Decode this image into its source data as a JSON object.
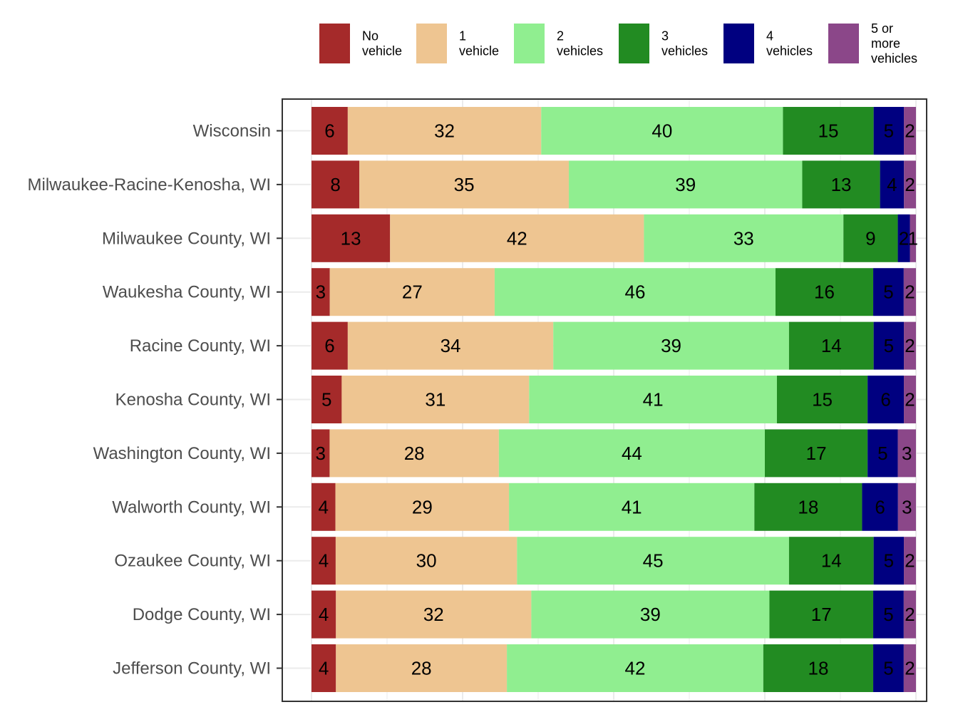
{
  "chart_data": {
    "type": "bar",
    "orientation": "horizontal",
    "stacked": true,
    "xlim": [
      0,
      100
    ],
    "grid": true,
    "legend_position": "top",
    "title": "",
    "xlabel": "",
    "ylabel": "",
    "categories": [
      "Wisconsin",
      "Milwaukee-Racine-Kenosha, WI",
      "Milwaukee County, WI",
      "Waukesha County, WI",
      "Racine County, WI",
      "Kenosha County, WI",
      "Washington County, WI",
      "Walworth County, WI",
      "Ozaukee County, WI",
      "Dodge County, WI",
      "Jefferson County, WI"
    ],
    "series": [
      {
        "name": "No vehicle",
        "legend_lines": [
          "No",
          "vehicle"
        ],
        "color": "#a52a2a",
        "values": [
          6,
          8,
          13,
          3,
          6,
          5,
          3,
          4,
          4,
          4,
          4
        ]
      },
      {
        "name": "1 vehicle",
        "legend_lines": [
          "1",
          "vehicle"
        ],
        "color": "#eec591",
        "values": [
          32,
          35,
          42,
          27,
          34,
          31,
          28,
          29,
          30,
          32,
          28
        ]
      },
      {
        "name": "2 vehicles",
        "legend_lines": [
          "2",
          "vehicles"
        ],
        "color": "#90ee90",
        "values": [
          40,
          39,
          33,
          46,
          39,
          41,
          44,
          41,
          45,
          39,
          42
        ]
      },
      {
        "name": "3 vehicles",
        "legend_lines": [
          "3",
          "vehicles"
        ],
        "color": "#228b22",
        "values": [
          15,
          13,
          9,
          16,
          14,
          15,
          17,
          18,
          14,
          17,
          18
        ]
      },
      {
        "name": "4 vehicles",
        "legend_lines": [
          "4",
          "vehicles"
        ],
        "color": "#000080",
        "values": [
          5,
          4,
          2,
          5,
          5,
          6,
          5,
          6,
          5,
          5,
          5
        ]
      },
      {
        "name": "5 or more vehicles",
        "legend_lines": [
          "5 or",
          "more",
          "vehicles"
        ],
        "color": "#8b4789",
        "values": [
          2,
          2,
          1,
          2,
          2,
          2,
          3,
          3,
          2,
          2,
          2
        ]
      }
    ]
  }
}
